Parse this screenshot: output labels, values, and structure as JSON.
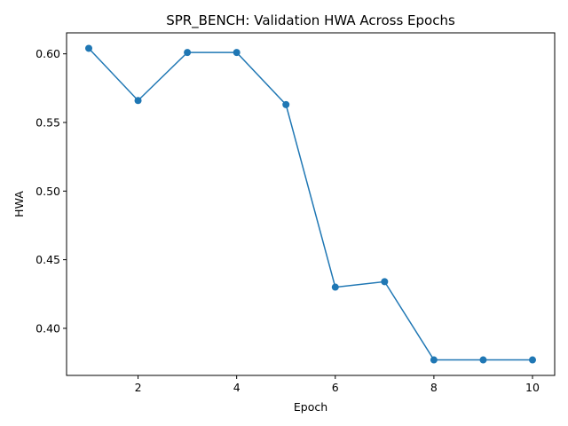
{
  "chart_data": {
    "type": "line",
    "title": "SPR_BENCH: Validation HWA Across Epochs",
    "xlabel": "Epoch",
    "ylabel": "HWA",
    "x": [
      1,
      2,
      3,
      4,
      5,
      6,
      7,
      8,
      9,
      10
    ],
    "series": [
      {
        "values": [
          0.604,
          0.566,
          0.601,
          0.601,
          0.563,
          0.43,
          0.434,
          0.377,
          0.377,
          0.377
        ]
      }
    ],
    "xlim": [
      0.55,
      10.45
    ],
    "ylim": [
      0.3657,
      0.6153
    ],
    "xticks": [
      2,
      4,
      6,
      8,
      10
    ],
    "xtick_labels": [
      "2",
      "4",
      "6",
      "8",
      "10"
    ],
    "yticks": [
      0.4,
      0.45,
      0.5,
      0.55,
      0.6
    ],
    "ytick_labels": [
      "0.40",
      "0.45",
      "0.50",
      "0.55",
      "0.60"
    ],
    "grid": false,
    "legend": "none",
    "line_color": "#1f77b4",
    "marker": "circle"
  }
}
